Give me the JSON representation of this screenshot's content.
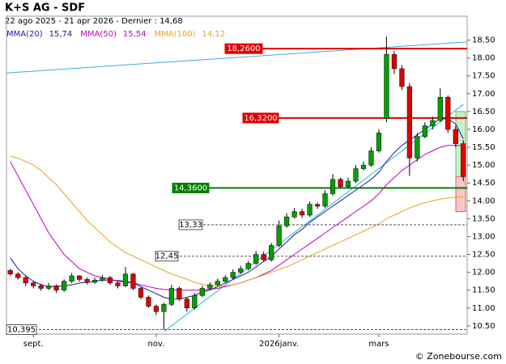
{
  "chart_data": {
    "type": "candlestick",
    "title": "K+S AG - SDF",
    "subtitle": "22 ago 2025 - 21 apr 2026 - Dernier : 14,68",
    "watermark": "© Zonebourse.com",
    "up_color": "#00a000",
    "down_color": "#e00000",
    "open": [
      12.05,
      11.95,
      11.85,
      11.7,
      11.62,
      11.55,
      11.62,
      11.5,
      11.75,
      11.9,
      11.8,
      11.72,
      11.78,
      11.85,
      11.7,
      11.62,
      11.95,
      11.55,
      11.3,
      11.05,
      10.9,
      11.1,
      11.55,
      11.25,
      11.0,
      11.35,
      11.55,
      11.65,
      11.75,
      11.85,
      12.0,
      12.1,
      12.25,
      12.5,
      12.35,
      12.75,
      13.3,
      13.55,
      13.7,
      13.6,
      13.9,
      13.85,
      14.2,
      14.6,
      14.4,
      14.55,
      14.9,
      15.0,
      15.4,
      16.3,
      18.1,
      17.7,
      17.2,
      15.2,
      15.8,
      16.1,
      16.25,
      16.9,
      16.0,
      15.6
    ],
    "high": [
      12.1,
      12.0,
      11.9,
      11.75,
      11.68,
      11.7,
      11.66,
      11.8,
      11.98,
      11.92,
      11.85,
      11.85,
      11.92,
      11.9,
      11.75,
      12.15,
      11.98,
      11.6,
      11.35,
      11.1,
      11.15,
      11.65,
      11.6,
      11.3,
      11.42,
      11.62,
      11.72,
      11.82,
      11.92,
      12.08,
      12.18,
      12.32,
      12.6,
      12.58,
      12.82,
      13.45,
      13.65,
      13.8,
      13.78,
      13.98,
      13.95,
      14.3,
      14.75,
      14.65,
      14.65,
      15.0,
      15.1,
      15.5,
      16.0,
      18.6,
      18.2,
      17.8,
      17.3,
      15.9,
      16.2,
      16.35,
      17.15,
      16.95,
      16.1,
      15.7
    ],
    "low": [
      11.9,
      11.8,
      11.62,
      11.55,
      11.48,
      11.5,
      11.42,
      11.45,
      11.7,
      11.74,
      11.66,
      11.68,
      11.74,
      11.65,
      11.55,
      11.58,
      11.5,
      11.25,
      11.0,
      10.8,
      10.395,
      11.05,
      11.2,
      10.9,
      10.95,
      11.3,
      11.5,
      11.6,
      11.7,
      11.8,
      11.95,
      12.05,
      12.2,
      12.3,
      12.3,
      12.7,
      13.25,
      13.5,
      13.52,
      13.55,
      13.78,
      13.8,
      14.15,
      14.35,
      14.35,
      14.5,
      14.85,
      14.95,
      15.35,
      16.2,
      17.55,
      17.1,
      14.7,
      15.1,
      15.75,
      16.0,
      16.2,
      15.9,
      15.5,
      14.55
    ],
    "close": [
      11.95,
      11.85,
      11.7,
      11.62,
      11.55,
      11.62,
      11.5,
      11.75,
      11.9,
      11.8,
      11.72,
      11.78,
      11.85,
      11.7,
      11.62,
      11.95,
      11.55,
      11.3,
      11.05,
      10.9,
      11.1,
      11.55,
      11.25,
      11.0,
      11.35,
      11.55,
      11.65,
      11.75,
      11.85,
      12.0,
      12.1,
      12.25,
      12.5,
      12.35,
      12.75,
      13.3,
      13.55,
      13.7,
      13.6,
      13.9,
      13.85,
      14.2,
      14.6,
      14.4,
      14.55,
      14.9,
      15.0,
      15.4,
      15.9,
      18.1,
      17.7,
      17.2,
      15.2,
      15.8,
      16.1,
      16.25,
      16.9,
      16.0,
      15.6,
      14.68
    ],
    "series": [
      {
        "name": "MMA(20)",
        "last_label": "15,74",
        "color": "#1a1aa0",
        "values": [
          12.4,
          12.1,
          11.9,
          11.75,
          11.65,
          11.6,
          11.6,
          11.62,
          11.65,
          11.7,
          11.72,
          11.75,
          11.78,
          11.78,
          11.77,
          11.75,
          11.7,
          11.6,
          11.5,
          11.4,
          11.3,
          11.25,
          11.25,
          11.3,
          11.35,
          11.45,
          11.5,
          11.6,
          11.7,
          11.8,
          11.9,
          12.0,
          12.15,
          12.3,
          12.45,
          12.65,
          12.85,
          13.05,
          13.2,
          13.4,
          13.55,
          13.7,
          13.85,
          14.0,
          14.15,
          14.3,
          14.45,
          14.6,
          14.8,
          15.1,
          15.35,
          15.55,
          15.7,
          15.85,
          16.0,
          16.15,
          16.3,
          16.3,
          16.15,
          15.74
        ]
      },
      {
        "name": "MMA(50)",
        "last_label": "15,54",
        "color": "#c000c0",
        "values": [
          15.1,
          14.7,
          14.3,
          13.9,
          13.5,
          13.1,
          12.8,
          12.5,
          12.3,
          12.1,
          12.0,
          11.9,
          11.85,
          11.8,
          11.75,
          11.72,
          11.7,
          11.65,
          11.6,
          11.55,
          11.52,
          11.5,
          11.5,
          11.5,
          11.5,
          11.5,
          11.52,
          11.55,
          11.6,
          11.65,
          11.7,
          11.78,
          11.85,
          11.95,
          12.05,
          12.2,
          12.35,
          12.5,
          12.65,
          12.8,
          12.95,
          13.1,
          13.25,
          13.4,
          13.55,
          13.7,
          13.85,
          14.0,
          14.2,
          14.45,
          14.65,
          14.85,
          15.0,
          15.15,
          15.3,
          15.4,
          15.5,
          15.55,
          15.55,
          15.54
        ]
      },
      {
        "name": "MMA(100)",
        "last_label": "14,12",
        "color": "#e8a020",
        "values": [
          15.25,
          15.2,
          15.1,
          15.0,
          14.85,
          14.65,
          14.45,
          14.2,
          13.95,
          13.7,
          13.45,
          13.25,
          13.05,
          12.85,
          12.7,
          12.55,
          12.45,
          12.35,
          12.25,
          12.15,
          12.05,
          11.95,
          11.88,
          11.8,
          11.72,
          11.66,
          11.62,
          11.6,
          11.62,
          11.65,
          11.7,
          11.78,
          11.85,
          11.92,
          12.0,
          12.08,
          12.15,
          12.25,
          12.35,
          12.45,
          12.55,
          12.65,
          12.75,
          12.85,
          12.95,
          13.05,
          13.15,
          13.25,
          13.35,
          13.5,
          13.6,
          13.7,
          13.8,
          13.88,
          13.95,
          14.0,
          14.05,
          14.08,
          14.1,
          14.12
        ]
      }
    ],
    "trendlines": [
      {
        "color": "#40a8e0",
        "from": [
          -0.5,
          17.58
        ],
        "to": [
          59.5,
          18.45
        ]
      },
      {
        "color": "#20b8d8",
        "from": [
          20,
          10.34
        ],
        "to": [
          59,
          16.7
        ]
      }
    ],
    "levels": [
      {
        "value": 18.26,
        "label": "18,2600",
        "color": "#e00000",
        "style": "solid"
      },
      {
        "value": 16.32,
        "label": "16,3200",
        "color": "#e00000",
        "style": "solid"
      },
      {
        "value": 14.36,
        "label": "14,3600",
        "color": "#008000",
        "style": "solid"
      },
      {
        "value": 13.33,
        "label": "13,33",
        "color": "#555555",
        "style": "dashed"
      },
      {
        "value": 12.45,
        "label": "12,45",
        "color": "#555555",
        "style": "dashed"
      },
      {
        "value": 10.395,
        "label": "10,395",
        "color": "#555555",
        "style": "dashed"
      }
    ],
    "xticks": [
      {
        "value": 3,
        "label": "sept."
      },
      {
        "value": 19,
        "label": "nov."
      },
      {
        "value": 35,
        "label": "2026janv."
      },
      {
        "value": 48,
        "label": "mars"
      }
    ],
    "ylim": [
      10.27,
      19.17
    ],
    "yticks": [
      {
        "value": 10.5,
        "label": "10.50"
      },
      {
        "value": 11,
        "label": "11.00"
      },
      {
        "value": 11.5,
        "label": "11.50"
      },
      {
        "value": 12,
        "label": "12.00"
      },
      {
        "value": 12.5,
        "label": "12.50"
      },
      {
        "value": 13,
        "label": "13.00"
      },
      {
        "value": 13.5,
        "label": "13.50"
      },
      {
        "value": 14,
        "label": "14.00"
      },
      {
        "value": 14.5,
        "label": "14.50"
      },
      {
        "value": 15,
        "label": "15.00"
      },
      {
        "value": 15.5,
        "label": "15.50"
      },
      {
        "value": 16,
        "label": "16.00"
      },
      {
        "value": 16.5,
        "label": "16.50"
      },
      {
        "value": 17,
        "label": "17.00"
      },
      {
        "value": 17.5,
        "label": "17.50"
      },
      {
        "value": 18,
        "label": "18.00"
      },
      {
        "value": 18.5,
        "label": "18.50"
      }
    ]
  }
}
